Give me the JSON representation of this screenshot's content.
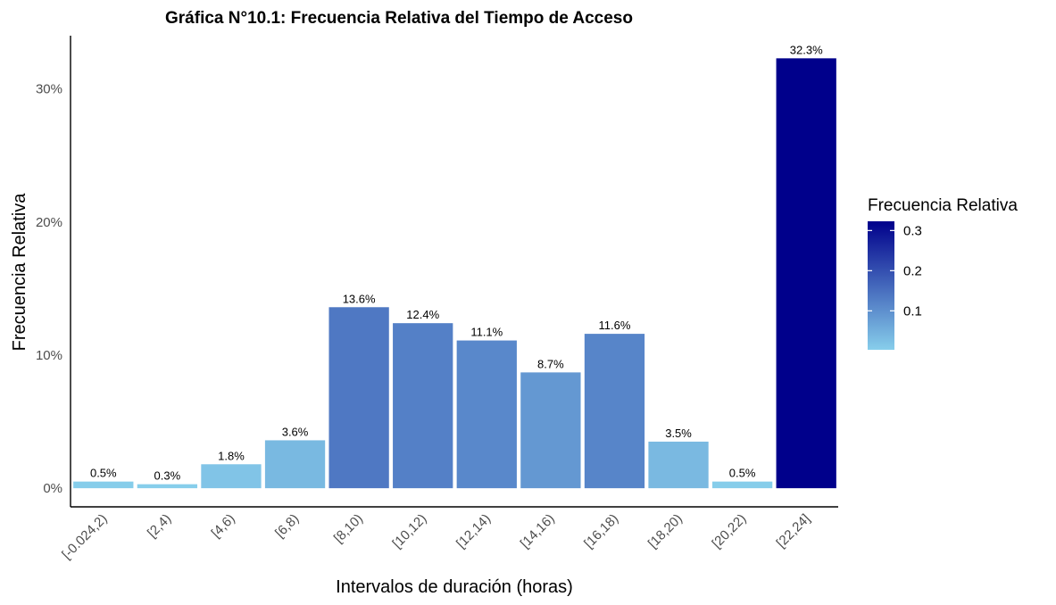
{
  "chart_data": {
    "type": "bar",
    "title": "Gráfica N°10.1: Frecuencia Relativa del Tiempo de Acceso",
    "xlabel": "Intervalos de duración (horas)",
    "ylabel": "Frecuencia Relativa",
    "categories": [
      "[-0.024,2)",
      "[2,4)",
      "[4,6)",
      "[6,8)",
      "[8,10)",
      "[10,12)",
      "[12,14)",
      "[14,16)",
      "[16,18)",
      "[18,20)",
      "[20,22)",
      "[22,24]"
    ],
    "values": [
      0.005,
      0.003,
      0.018,
      0.036,
      0.136,
      0.124,
      0.111,
      0.087,
      0.116,
      0.035,
      0.005,
      0.323
    ],
    "data_labels": [
      "0.5%",
      "0.3%",
      "1.8%",
      "3.6%",
      "13.6%",
      "12.4%",
      "11.1%",
      "8.7%",
      "11.6%",
      "3.5%",
      "0.5%",
      "32.3%"
    ],
    "ylim": [
      -0.014,
      0.34
    ],
    "yticks": [
      0,
      0.1,
      0.2,
      0.3
    ],
    "ytick_labels": [
      "0%",
      "10%",
      "20%",
      "30%"
    ],
    "grid": false,
    "legend": {
      "title": "Frecuencia Relativa",
      "position": "right",
      "type": "colorbar",
      "range": [
        0.003,
        0.323
      ],
      "ticks": [
        0.1,
        0.2,
        0.3
      ],
      "tick_labels": [
        "0.1",
        "0.2",
        "0.3"
      ],
      "low_color": "#87CEEB",
      "high_color": "#00008B"
    }
  }
}
